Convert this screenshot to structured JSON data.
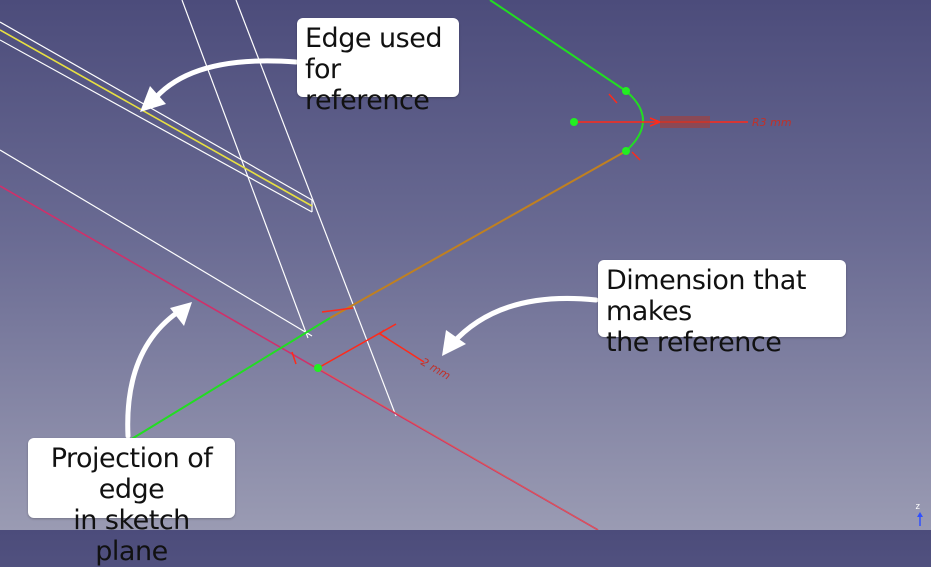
{
  "callouts": {
    "edge_reference": {
      "line1": "Edge used for",
      "line2": "reference"
    },
    "dimension": {
      "line1": "Dimension that makes",
      "line2": "the reference"
    },
    "projection": {
      "line1": "Projection of edge",
      "line2": "in sketch plane"
    }
  },
  "dimensions": {
    "radius_label": "R3 mm",
    "distance_label": "2 mm"
  },
  "axis": {
    "label": "z"
  },
  "colors": {
    "background_top": "#4c4c7b",
    "background_bottom": "#9a9bb3",
    "sketch_green": "#22dd22",
    "dimension_red": "#ff2a1a",
    "reference_yellow": "#e8e040",
    "projection_magenta": "#d0306a",
    "edge_white": "#ffffff"
  }
}
